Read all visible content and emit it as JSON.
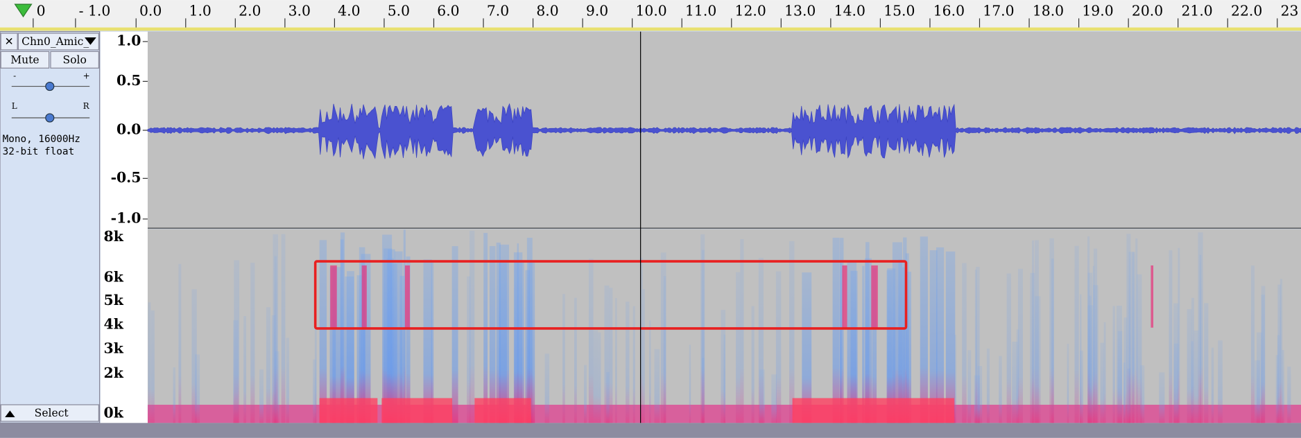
{
  "ruler": {
    "labels": [
      "0",
      "- 1.0",
      "0.0",
      "1.0",
      "2.0",
      "3.0",
      "4.0",
      "5.0",
      "6.0",
      "7.0",
      "8.0",
      "9.0",
      "10.0",
      "11.0",
      "12.0",
      "13.0",
      "14.0",
      "15.0",
      "16.0",
      "17.0",
      "18.0",
      "19.0",
      "20.0",
      "21.0",
      "22.0",
      "23"
    ]
  },
  "track": {
    "name": "Chn0_Amic_",
    "mute": "Mute",
    "solo": "Solo",
    "gain_minus": "-",
    "gain_plus": "+",
    "pan_left": "L",
    "pan_right": "R",
    "format": "Mono, 16000Hz",
    "sample_format": "32-bit float",
    "select": "Select"
  },
  "waveform_axis": [
    "1.0",
    "0.5",
    "0.0",
    "-0.5",
    "-1.0"
  ],
  "spectrogram_axis": [
    "8k",
    "6k",
    "5k",
    "4k",
    "3k",
    "2k",
    "0k"
  ]
}
